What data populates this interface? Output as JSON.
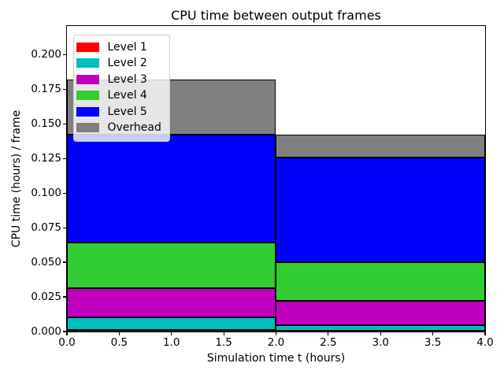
{
  "chart_data": {
    "type": "bar",
    "stacked": true,
    "title": "CPU time between output frames",
    "xlabel": "Simulation time t (hours)",
    "ylabel": "CPU time (hours) / frame",
    "xlim": [
      0,
      4
    ],
    "ylim": [
      0,
      0.2207
    ],
    "grid": false,
    "bar_edge_color": "#000000",
    "background_color": "#ffffff",
    "x_ticks": [
      {
        "value": 0.0,
        "label": "0.0"
      },
      {
        "value": 0.5,
        "label": "0.5"
      },
      {
        "value": 1.0,
        "label": "1.0"
      },
      {
        "value": 1.5,
        "label": "1.5"
      },
      {
        "value": 2.0,
        "label": "2.0"
      },
      {
        "value": 2.5,
        "label": "2.5"
      },
      {
        "value": 3.0,
        "label": "3.0"
      },
      {
        "value": 3.5,
        "label": "3.5"
      },
      {
        "value": 4.0,
        "label": "4.0"
      }
    ],
    "y_ticks": [
      {
        "value": 0.0,
        "label": "0.000"
      },
      {
        "value": 0.025,
        "label": "0.025"
      },
      {
        "value": 0.05,
        "label": "0.050"
      },
      {
        "value": 0.075,
        "label": "0.075"
      },
      {
        "value": 0.1,
        "label": "0.100"
      },
      {
        "value": 0.125,
        "label": "0.125"
      },
      {
        "value": 0.15,
        "label": "0.150"
      },
      {
        "value": 0.175,
        "label": "0.175"
      },
      {
        "value": 0.2,
        "label": "0.200"
      }
    ],
    "bars": [
      {
        "x_start": 0,
        "x_end": 2,
        "total": 0.182
      },
      {
        "x_start": 2,
        "x_end": 4,
        "total": 0.142
      }
    ],
    "series": [
      {
        "name": "Level 1",
        "color": "#ff0000",
        "values": [
          0.001,
          0.0005
        ]
      },
      {
        "name": "Level 2",
        "color": "#00bfbf",
        "values": [
          0.009,
          0.004
        ]
      },
      {
        "name": "Level 3",
        "color": "#bf00bf",
        "values": [
          0.021,
          0.0175
        ]
      },
      {
        "name": "Level 4",
        "color": "#32cd32",
        "values": [
          0.033,
          0.028
        ]
      },
      {
        "name": "Level 5",
        "color": "#0000ff",
        "values": [
          0.078,
          0.0755
        ]
      },
      {
        "name": "Overhead",
        "color": "#808080",
        "values": [
          0.04,
          0.0165
        ]
      }
    ],
    "legend": {
      "position": "upper left"
    }
  }
}
